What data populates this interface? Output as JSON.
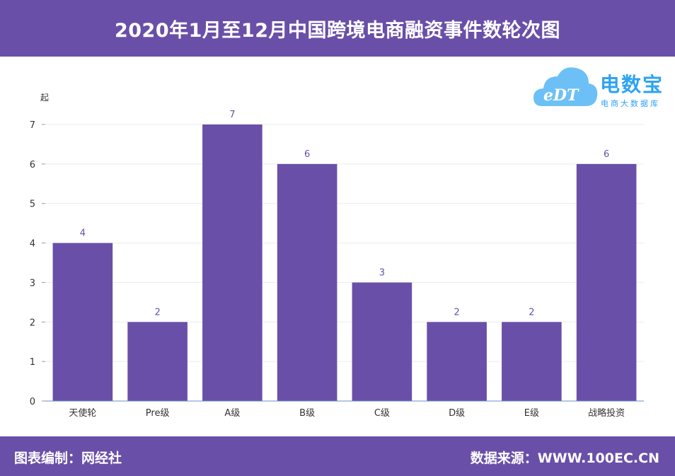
{
  "header": {
    "title": "2020年1月至12月中国跨境电商融资事件数轮次图"
  },
  "footer": {
    "left": "图表编制：网经社",
    "right": "数据来源：WWW.100EC.CN"
  },
  "logo": {
    "brand": "电数宝",
    "sub": "电商大数据库",
    "mark": "eDT"
  },
  "colors": {
    "bar": "#6a4fa8",
    "header": "#6a4fa8",
    "logo": "#2ea3f2"
  },
  "chart_data": {
    "type": "bar",
    "title": "2020年1月至12月中国跨境电商融资事件数轮次图",
    "ylabel": "起",
    "xlabel": "",
    "ylim": [
      0,
      7
    ],
    "yticks": [
      0,
      1,
      2,
      3,
      4,
      5,
      6,
      7
    ],
    "grid": true,
    "categories": [
      "天使轮",
      "Pre级",
      "A级",
      "B级",
      "C级",
      "D级",
      "E级",
      "战略投资"
    ],
    "values": [
      4,
      2,
      7,
      6,
      3,
      2,
      2,
      6
    ]
  }
}
